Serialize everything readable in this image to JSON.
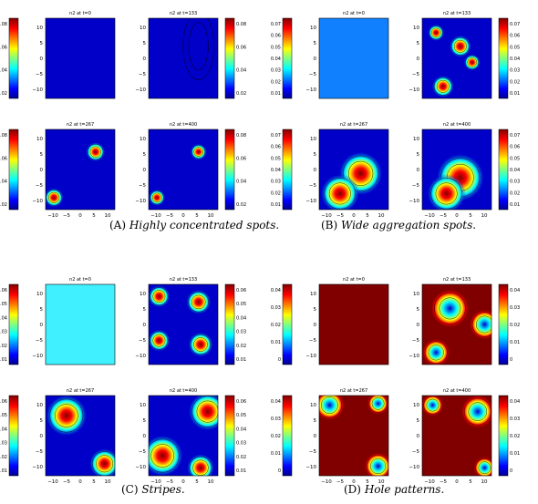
{
  "colors": {
    "blue": "#0000c8",
    "light_blue": "#1080ff",
    "cyan": "#40f0ff",
    "dark_red": "#800000"
  },
  "colorbar_ticks": {
    "A": [
      "0.08",
      "0.06",
      "0.04",
      "0.02"
    ],
    "B": [
      "0.07",
      "0.06",
      "0.05",
      "0.04",
      "0.03",
      "0.02",
      "0.01"
    ],
    "C": [
      "0.06",
      "0.05",
      "0.04",
      "0.03",
      "0.02",
      "0.01"
    ],
    "D": [
      "0.04",
      "0.03",
      "0.02",
      "0.01",
      "0"
    ]
  },
  "axis_ticks": {
    "x": [
      "−10",
      "−5",
      "0",
      "5",
      "10"
    ],
    "y": [
      "10",
      "5",
      "0",
      "−5",
      "−10"
    ]
  },
  "panels": [
    {
      "id": "A",
      "label": "(A)",
      "caption": "Highly concentrated spots.",
      "titles": [
        "n2 at t=0",
        "n2 at t=133",
        "n2 at t=267",
        "n2 at t=400"
      ]
    },
    {
      "id": "B",
      "label": "(B)",
      "caption": "Wide aggregation spots.",
      "titles": [
        "n2 at t=0",
        "n2 at t=133",
        "n2 at t=267",
        "n2 at t=400"
      ]
    },
    {
      "id": "C",
      "label": "(C)",
      "caption": "Stripes.",
      "titles": [
        "n2 at t=0",
        "n2 at t=133",
        "n2 at t=267",
        "n2 at t=400"
      ]
    },
    {
      "id": "D",
      "label": "(D)",
      "caption": "Hole patterns.",
      "titles": [
        "n2 at t=0",
        "n2 at t=133",
        "n2 at t=267",
        "n2 at t=400"
      ]
    }
  ]
}
